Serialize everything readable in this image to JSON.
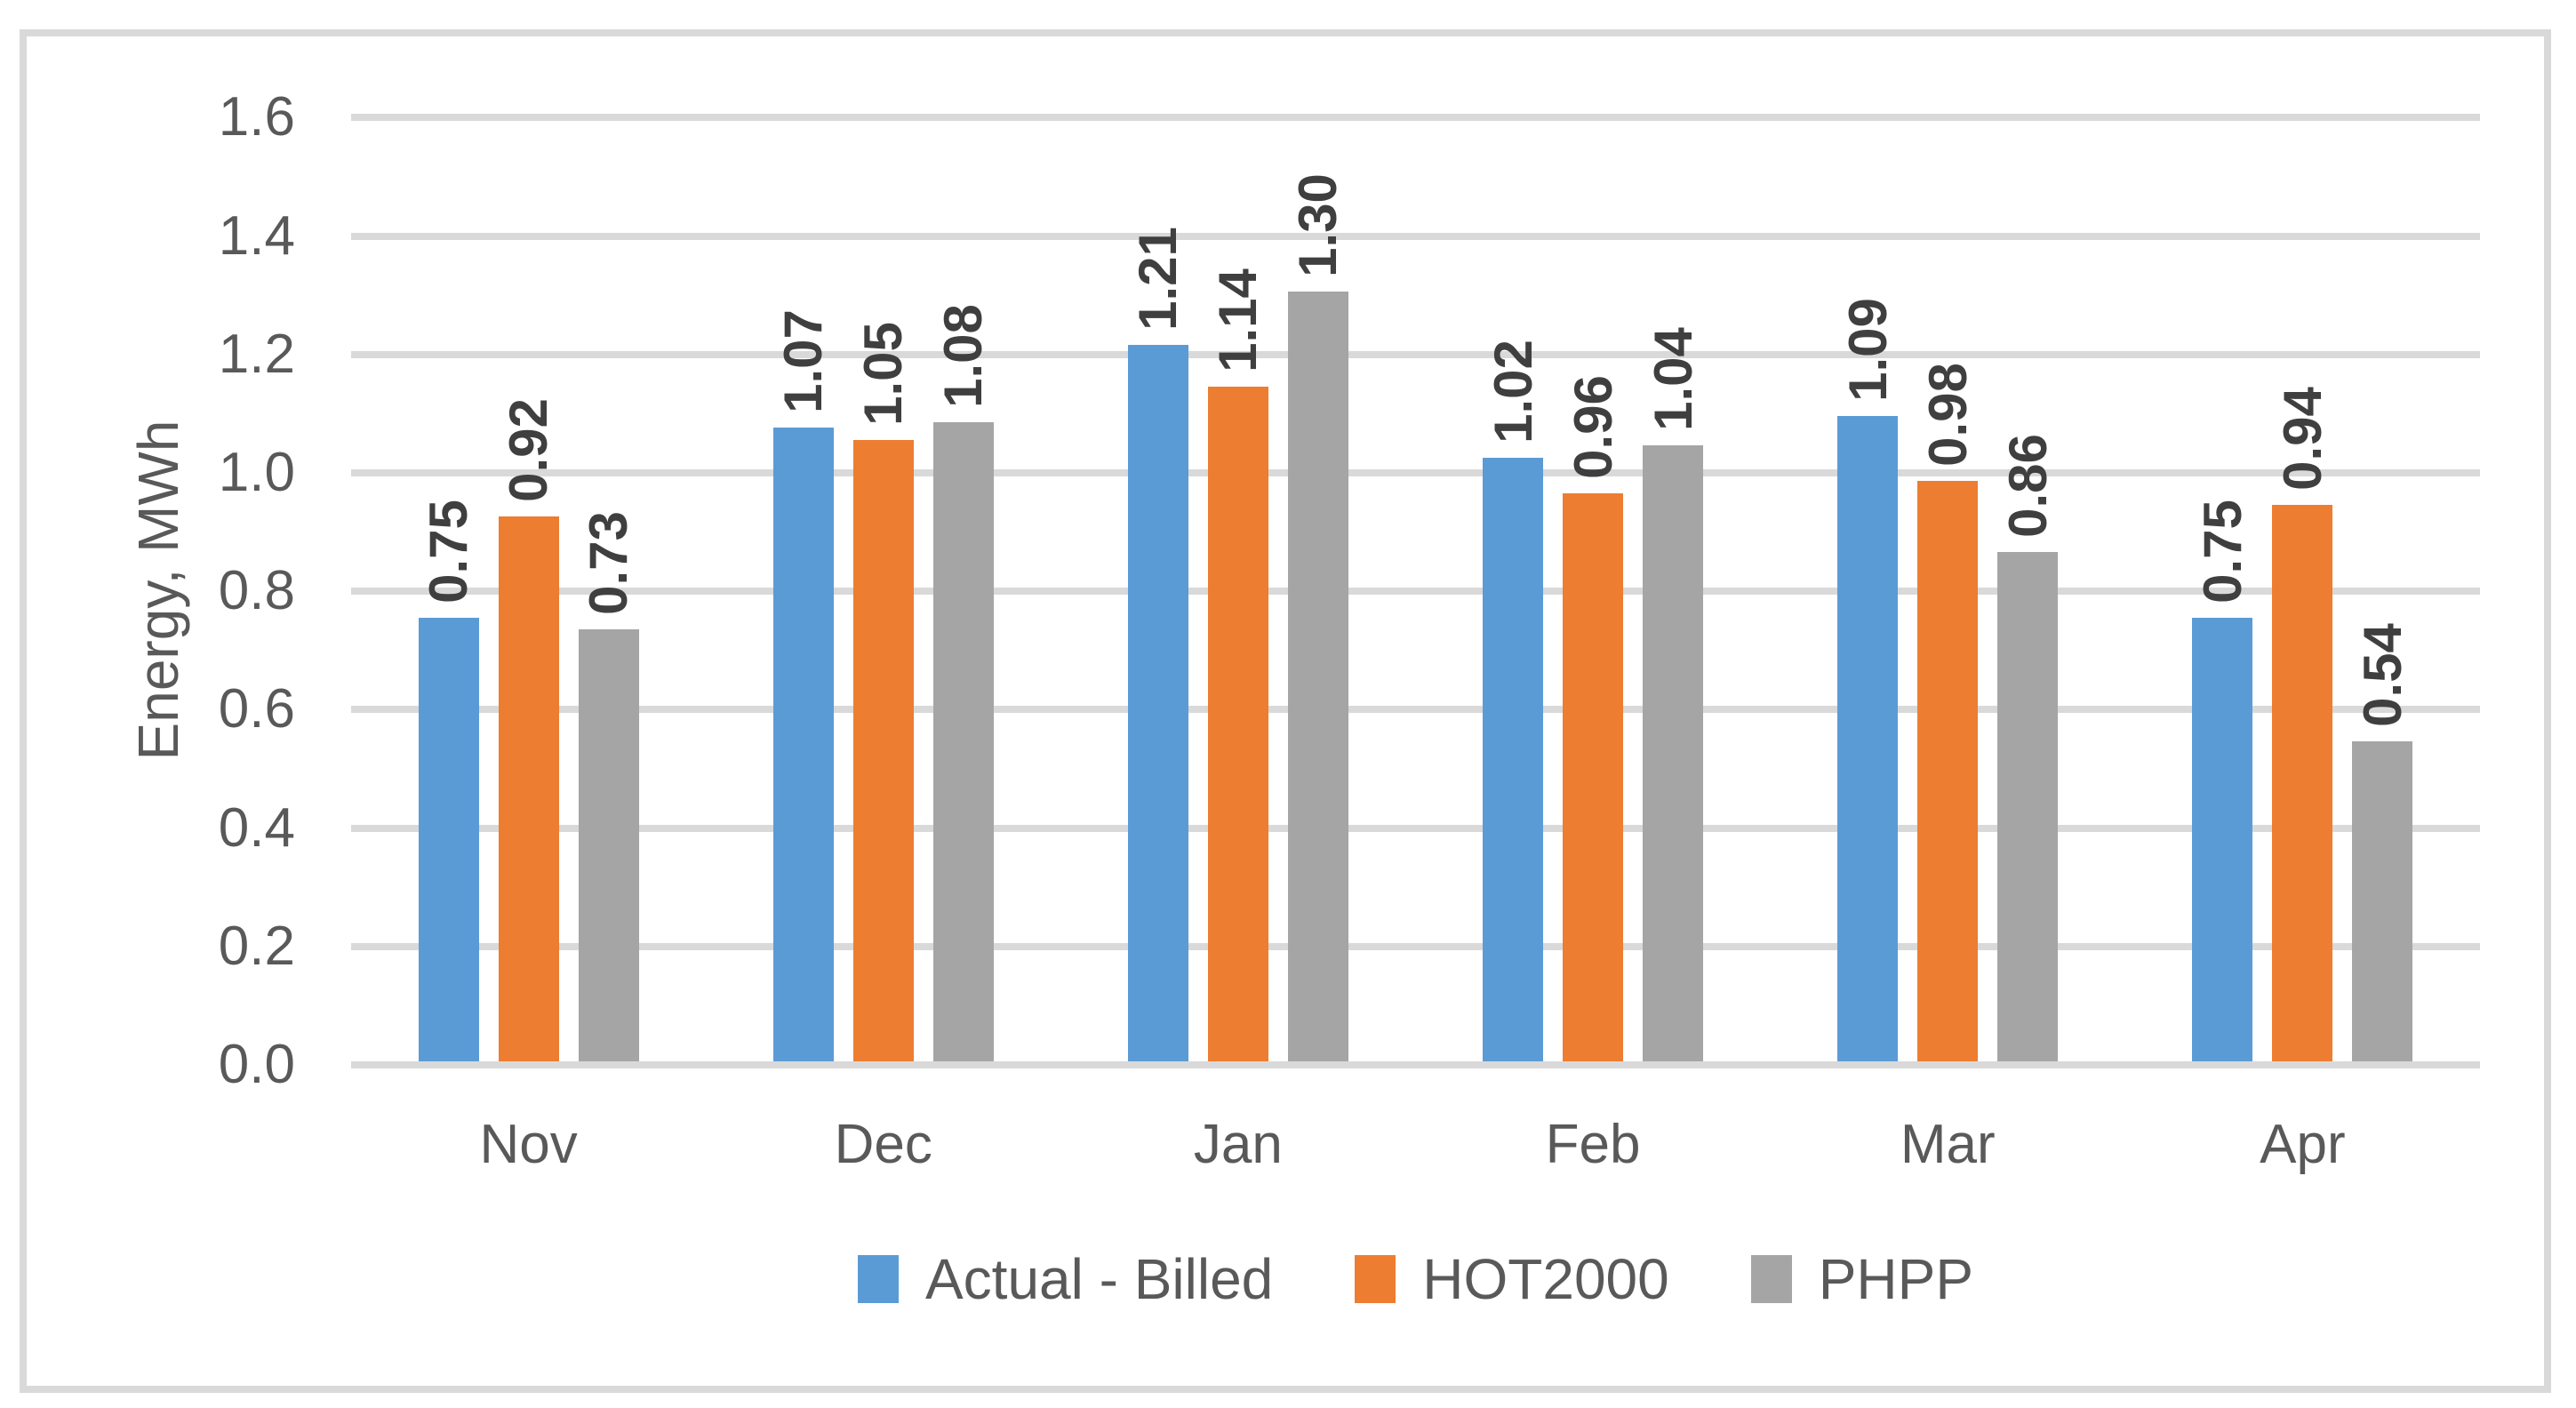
{
  "chart_data": {
    "type": "bar",
    "title": "",
    "categories": [
      "Nov",
      "Dec",
      "Jan",
      "Feb",
      "Mar",
      "Apr"
    ],
    "series": [
      {
        "name": "Actual - Billed",
        "color": "#5B9BD5",
        "values": [
          0.75,
          1.07,
          1.21,
          1.02,
          1.09,
          0.75
        ]
      },
      {
        "name": "HOT2000",
        "color": "#ED7D31",
        "values": [
          0.92,
          1.05,
          1.14,
          0.96,
          0.98,
          0.94
        ]
      },
      {
        "name": "PHPP",
        "color": "#A5A5A5",
        "values": [
          0.73,
          1.08,
          1.3,
          1.04,
          0.86,
          0.54
        ]
      }
    ],
    "xlabel": "",
    "ylabel": "Energy, MWh",
    "ylim": [
      0.0,
      1.6
    ],
    "yticks": [
      "0.0",
      "0.2",
      "0.4",
      "0.6",
      "0.8",
      "1.0",
      "1.2",
      "1.4",
      "1.6"
    ],
    "grid": true,
    "legend_position": "bottom",
    "data_label_decimals": 2
  },
  "style": {
    "background": "#FFFFFF",
    "frame_border": "#D9D9D9",
    "gridline": "#D9D9D9",
    "axis_line": "#D9D9D9",
    "tick_text": "#595959",
    "category_text": "#595959",
    "legend_text": "#595959",
    "axis_title_text": "#595959",
    "data_label_text": "#3F3F3F"
  }
}
